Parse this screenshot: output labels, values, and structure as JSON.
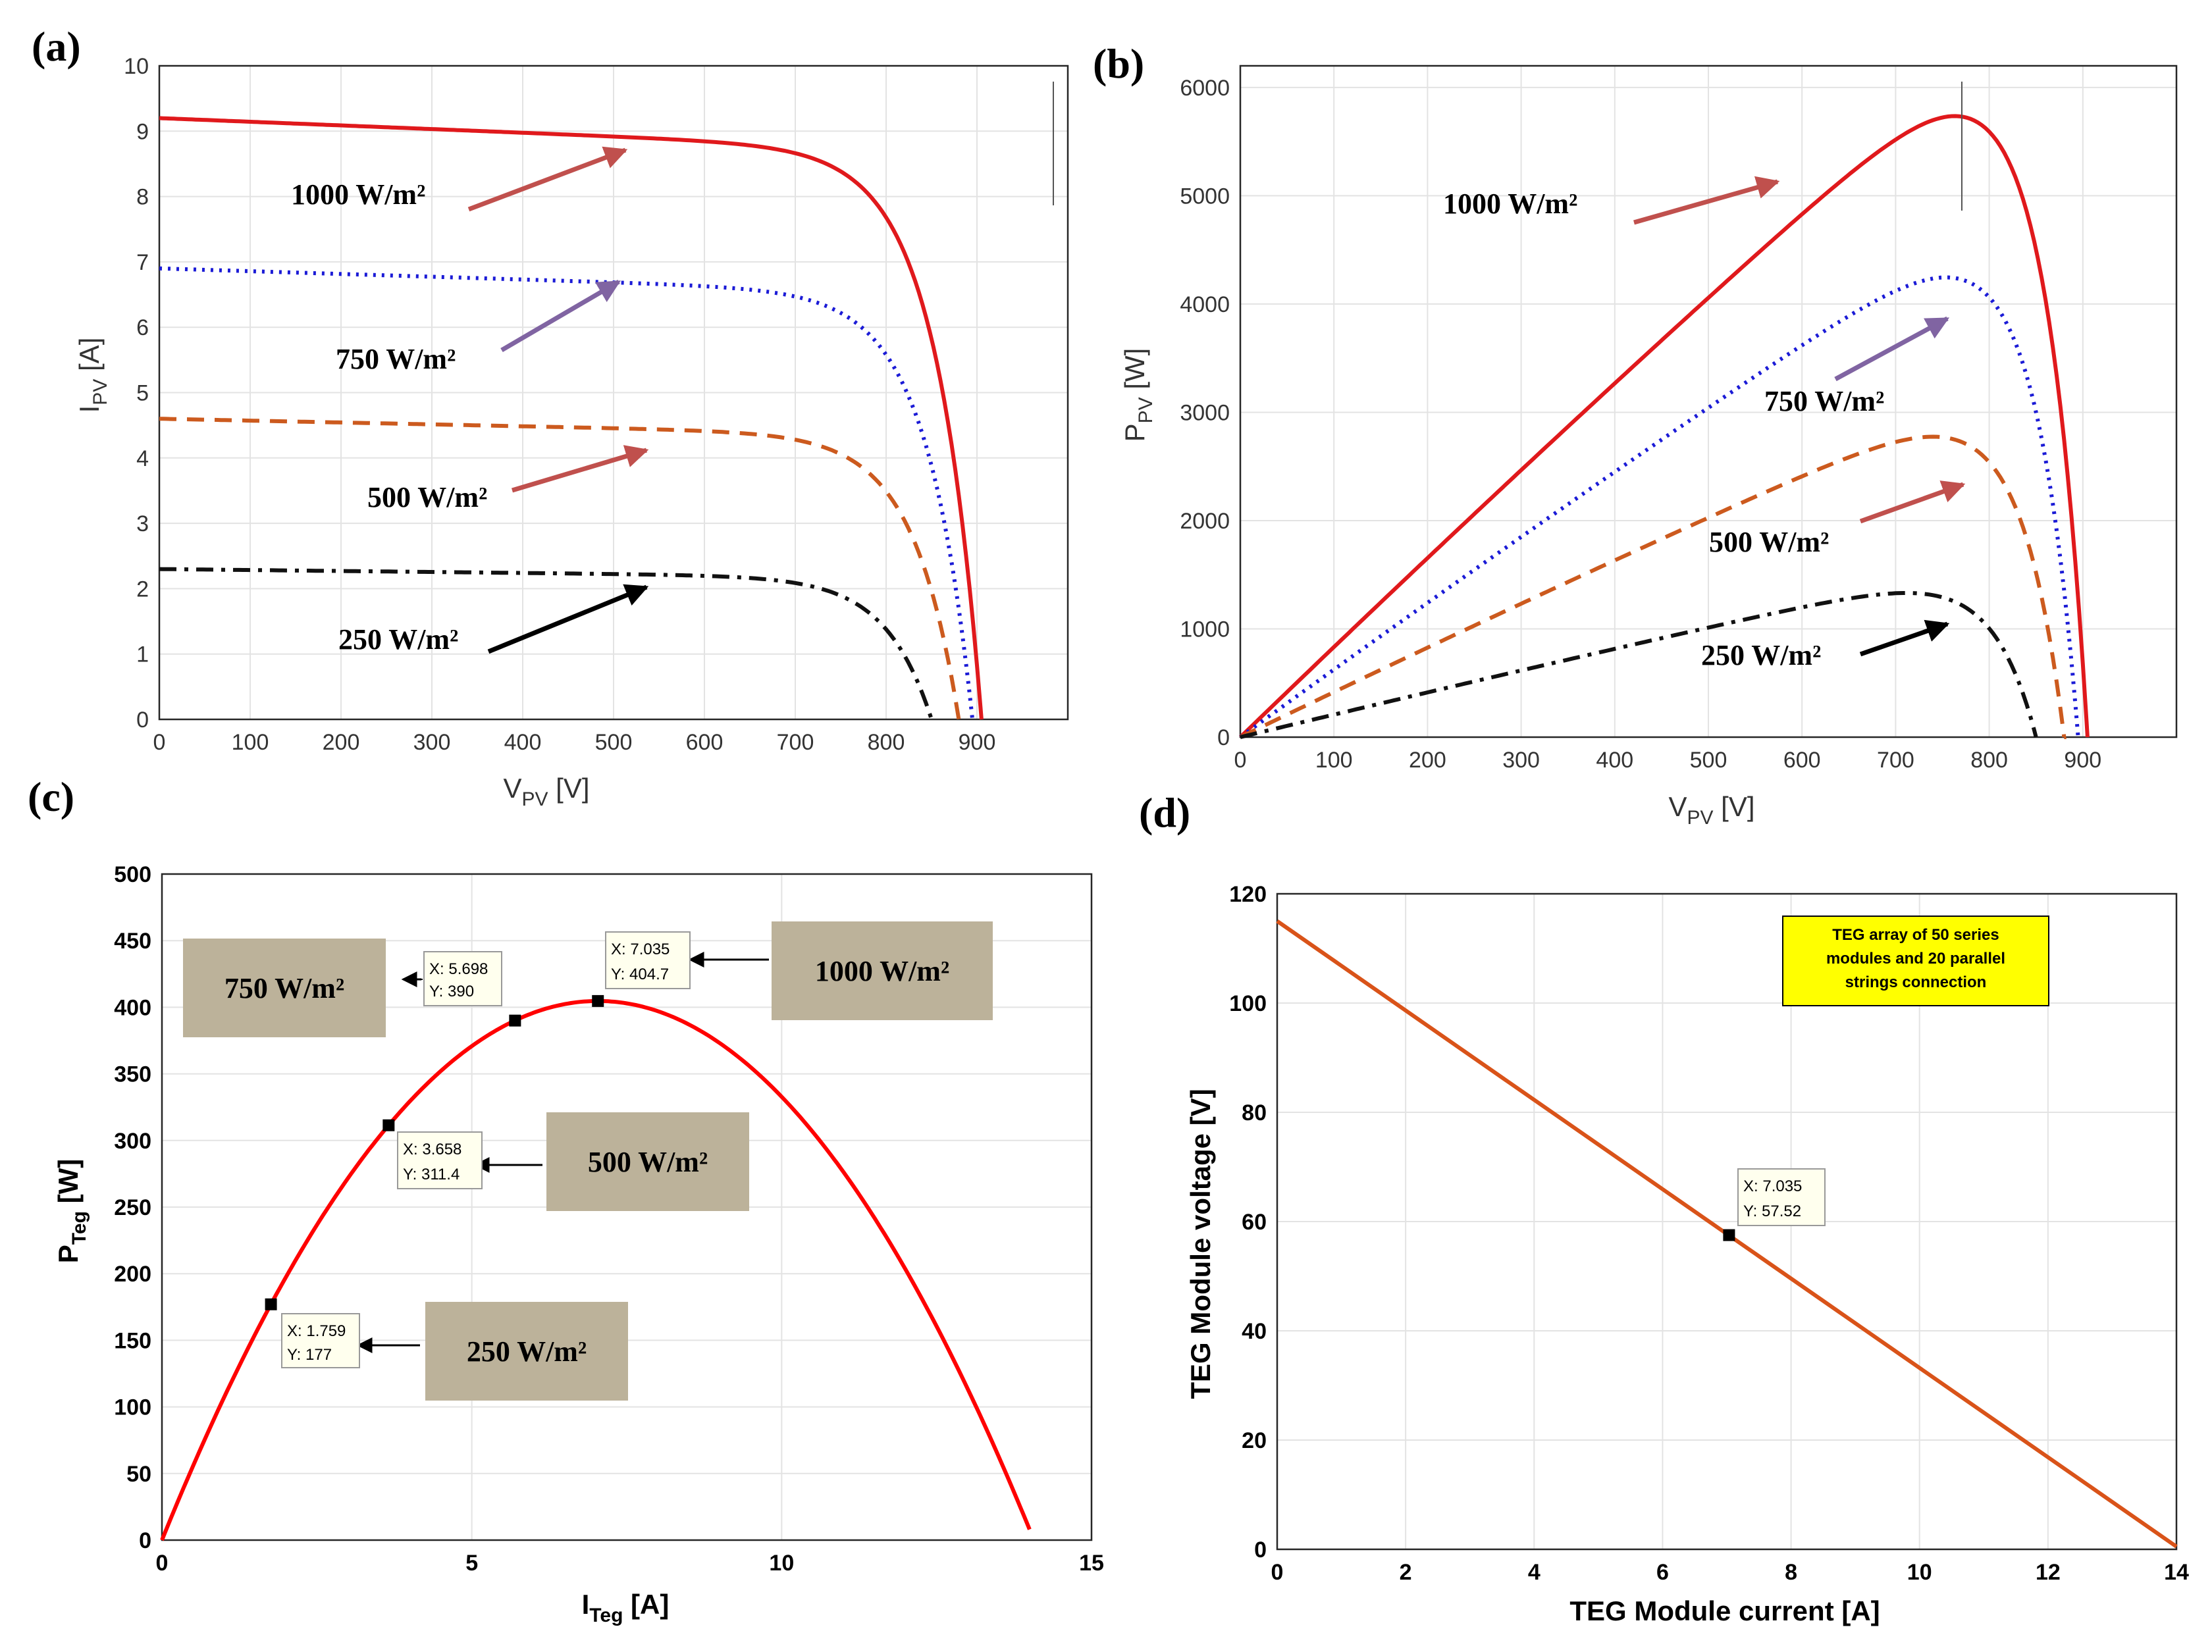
{
  "panels": {
    "a": {
      "label": "(a)",
      "xlabel_main": "V",
      "xlabel_sub": "PV",
      "xlabel_unit": " [V]",
      "ylabel_main": "I",
      "ylabel_sub": "PV",
      "ylabel_unit": " [A]"
    },
    "b": {
      "label": "(b)",
      "xlabel_main": "V",
      "xlabel_sub": "PV",
      "xlabel_unit": " [V]",
      "ylabel_main": "P",
      "ylabel_sub": "PV",
      "ylabel_unit": " [W]"
    },
    "c": {
      "label": "(c)",
      "xlabel_main": "I",
      "xlabel_sub": "Teg",
      "xlabel_unit": " [A]",
      "ylabel_main": "P",
      "ylabel_sub": "Teg",
      "ylabel_unit": " [W]"
    },
    "d": {
      "label": "(d)",
      "xlabel": "TEG Module current [A]",
      "ylabel": "TEG Module voltage [V]",
      "note_lines": [
        "TEG array of 50 series",
        "modules and 20 parallel",
        "strings connection"
      ]
    }
  },
  "chart_data": [
    {
      "id": "a",
      "type": "line",
      "xlim": [
        0,
        1000
      ],
      "ylim": [
        0,
        10
      ],
      "xticks": [
        0,
        100,
        200,
        300,
        400,
        500,
        600,
        700,
        800,
        900
      ],
      "yticks": [
        0,
        1,
        2,
        3,
        4,
        5,
        6,
        7,
        8,
        9,
        10
      ],
      "grid": true,
      "series": [
        {
          "name": "1000 W/m²",
          "isc": 9.2,
          "voc": 905,
          "drop": 0.22,
          "k": 50,
          "color": "#e0191c",
          "style": "solid"
        },
        {
          "name": "750 W/m²",
          "isc": 6.9,
          "voc": 895,
          "drop": 0.22,
          "k": 50,
          "color": "#1b1bd6",
          "style": "dotted"
        },
        {
          "name": "500 W/m²",
          "isc": 4.6,
          "voc": 880,
          "drop": 0.22,
          "k": 50,
          "color": "#cc5a1e",
          "style": "dashed"
        },
        {
          "name": "250 W/m²",
          "isc": 2.3,
          "voc": 850,
          "drop": 0.22,
          "k": 50,
          "color": "#111111",
          "style": "dashdot"
        }
      ]
    },
    {
      "id": "b",
      "type": "line",
      "xlim": [
        0,
        1000
      ],
      "ylim": [
        0,
        6200
      ],
      "xticks": [
        0,
        100,
        200,
        300,
        400,
        500,
        600,
        700,
        800,
        900
      ],
      "yticks": [
        0,
        1000,
        2000,
        3000,
        4000,
        5000,
        6000
      ],
      "grid": true,
      "series": [
        {
          "name": "1000 W/m²",
          "isc": 9.2,
          "voc": 905,
          "drop": 0.22,
          "k": 50,
          "color": "#e0191c",
          "style": "solid"
        },
        {
          "name": "750 W/m²",
          "isc": 6.9,
          "voc": 895,
          "drop": 0.22,
          "k": 50,
          "color": "#1b1bd6",
          "style": "dotted"
        },
        {
          "name": "500 W/m²",
          "isc": 4.6,
          "voc": 880,
          "drop": 0.22,
          "k": 50,
          "color": "#cc5a1e",
          "style": "dashed"
        },
        {
          "name": "250 W/m²",
          "isc": 2.3,
          "voc": 850,
          "drop": 0.22,
          "k": 50,
          "color": "#111111",
          "style": "dashdot"
        }
      ]
    },
    {
      "id": "c",
      "type": "line",
      "xlim": [
        0,
        15
      ],
      "ylim": [
        0,
        500
      ],
      "xticks": [
        0,
        5,
        10,
        15
      ],
      "yticks": [
        0,
        50,
        100,
        150,
        200,
        250,
        300,
        350,
        400,
        450,
        500
      ],
      "grid": true,
      "curve": {
        "x_start": 0,
        "x_end": 14.0,
        "vertex_x": 7.035,
        "vertex_y": 404.7,
        "color": "#ff0000"
      },
      "datatips": [
        {
          "irradiance": "250 W/m²",
          "x": 1.759,
          "y": 177,
          "x_text": "X: 1.759",
          "y_text": "Y: 177"
        },
        {
          "irradiance": "500 W/m²",
          "x": 3.658,
          "y": 311.4,
          "x_text": "X: 3.658",
          "y_text": "Y: 311.4"
        },
        {
          "irradiance": "750 W/m²",
          "x": 5.698,
          "y": 390,
          "x_text": "X: 5.698",
          "y_text": "Y: 390"
        },
        {
          "irradiance": "1000 W/m²",
          "x": 7.035,
          "y": 404.7,
          "x_text": "X: 7.035",
          "y_text": "Y: 404.7"
        }
      ]
    },
    {
      "id": "d",
      "type": "line",
      "xlim": [
        0,
        14
      ],
      "ylim": [
        0,
        120
      ],
      "xticks": [
        0,
        2,
        4,
        6,
        8,
        10,
        12,
        14
      ],
      "yticks": [
        0,
        20,
        40,
        60,
        80,
        100,
        120
      ],
      "grid": true,
      "line": {
        "x": [
          0,
          14
        ],
        "y": [
          115,
          0.5
        ],
        "color": "#d95319"
      },
      "datatip": {
        "x": 7.035,
        "y": 57.52,
        "x_text": "X: 7.035",
        "y_text": "Y: 57.52"
      }
    }
  ]
}
